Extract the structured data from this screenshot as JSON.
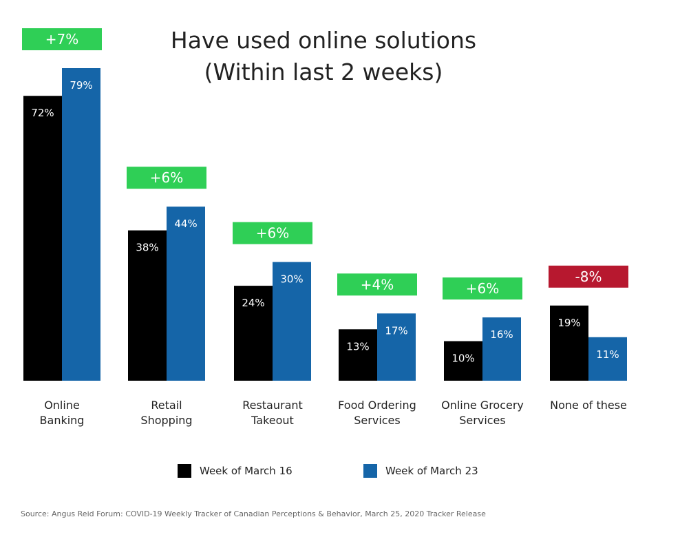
{
  "chart_data": {
    "type": "bar",
    "title": "Have used online solutions",
    "subtitle": "(Within last 2 weeks)",
    "categories": [
      [
        "Online",
        "Banking"
      ],
      [
        "Retail",
        "Shopping"
      ],
      [
        "Restaurant",
        "Takeout"
      ],
      [
        "Food Ordering",
        "Services"
      ],
      [
        "Online Grocery",
        "Services"
      ],
      [
        "None of these"
      ]
    ],
    "series": [
      {
        "name": "Week of March 16",
        "color": "#000000",
        "label_color": "#ffffff",
        "values": [
          72,
          38,
          24,
          13,
          10,
          19
        ],
        "labels": [
          "72%",
          "38%",
          "24%",
          "13%",
          "10%",
          "19%"
        ]
      },
      {
        "name": "Week of March 23",
        "color": "#1565a8",
        "label_color": "#ffffff",
        "values": [
          79,
          44,
          30,
          17,
          16,
          11
        ],
        "labels": [
          "79%",
          "44%",
          "30%",
          "17%",
          "16%",
          "11%"
        ]
      }
    ],
    "changes": [
      {
        "label": "+7%",
        "color": "#2fcf56"
      },
      {
        "label": "+6%",
        "color": "#2fcf56"
      },
      {
        "label": "+6%",
        "color": "#2fcf56"
      },
      {
        "label": "+4%",
        "color": "#2fcf56"
      },
      {
        "label": "+6%",
        "color": "#2fcf56"
      },
      {
        "label": "-8%",
        "color": "#b7182f"
      }
    ],
    "ylim": [
      0,
      100
    ],
    "grid": false,
    "legend_position": "bottom"
  },
  "source": "Source: Angus Reid Forum: COVID-19 Weekly Tracker of Canadian Perceptions & Behavior, March 25, 2020 Tracker Release"
}
